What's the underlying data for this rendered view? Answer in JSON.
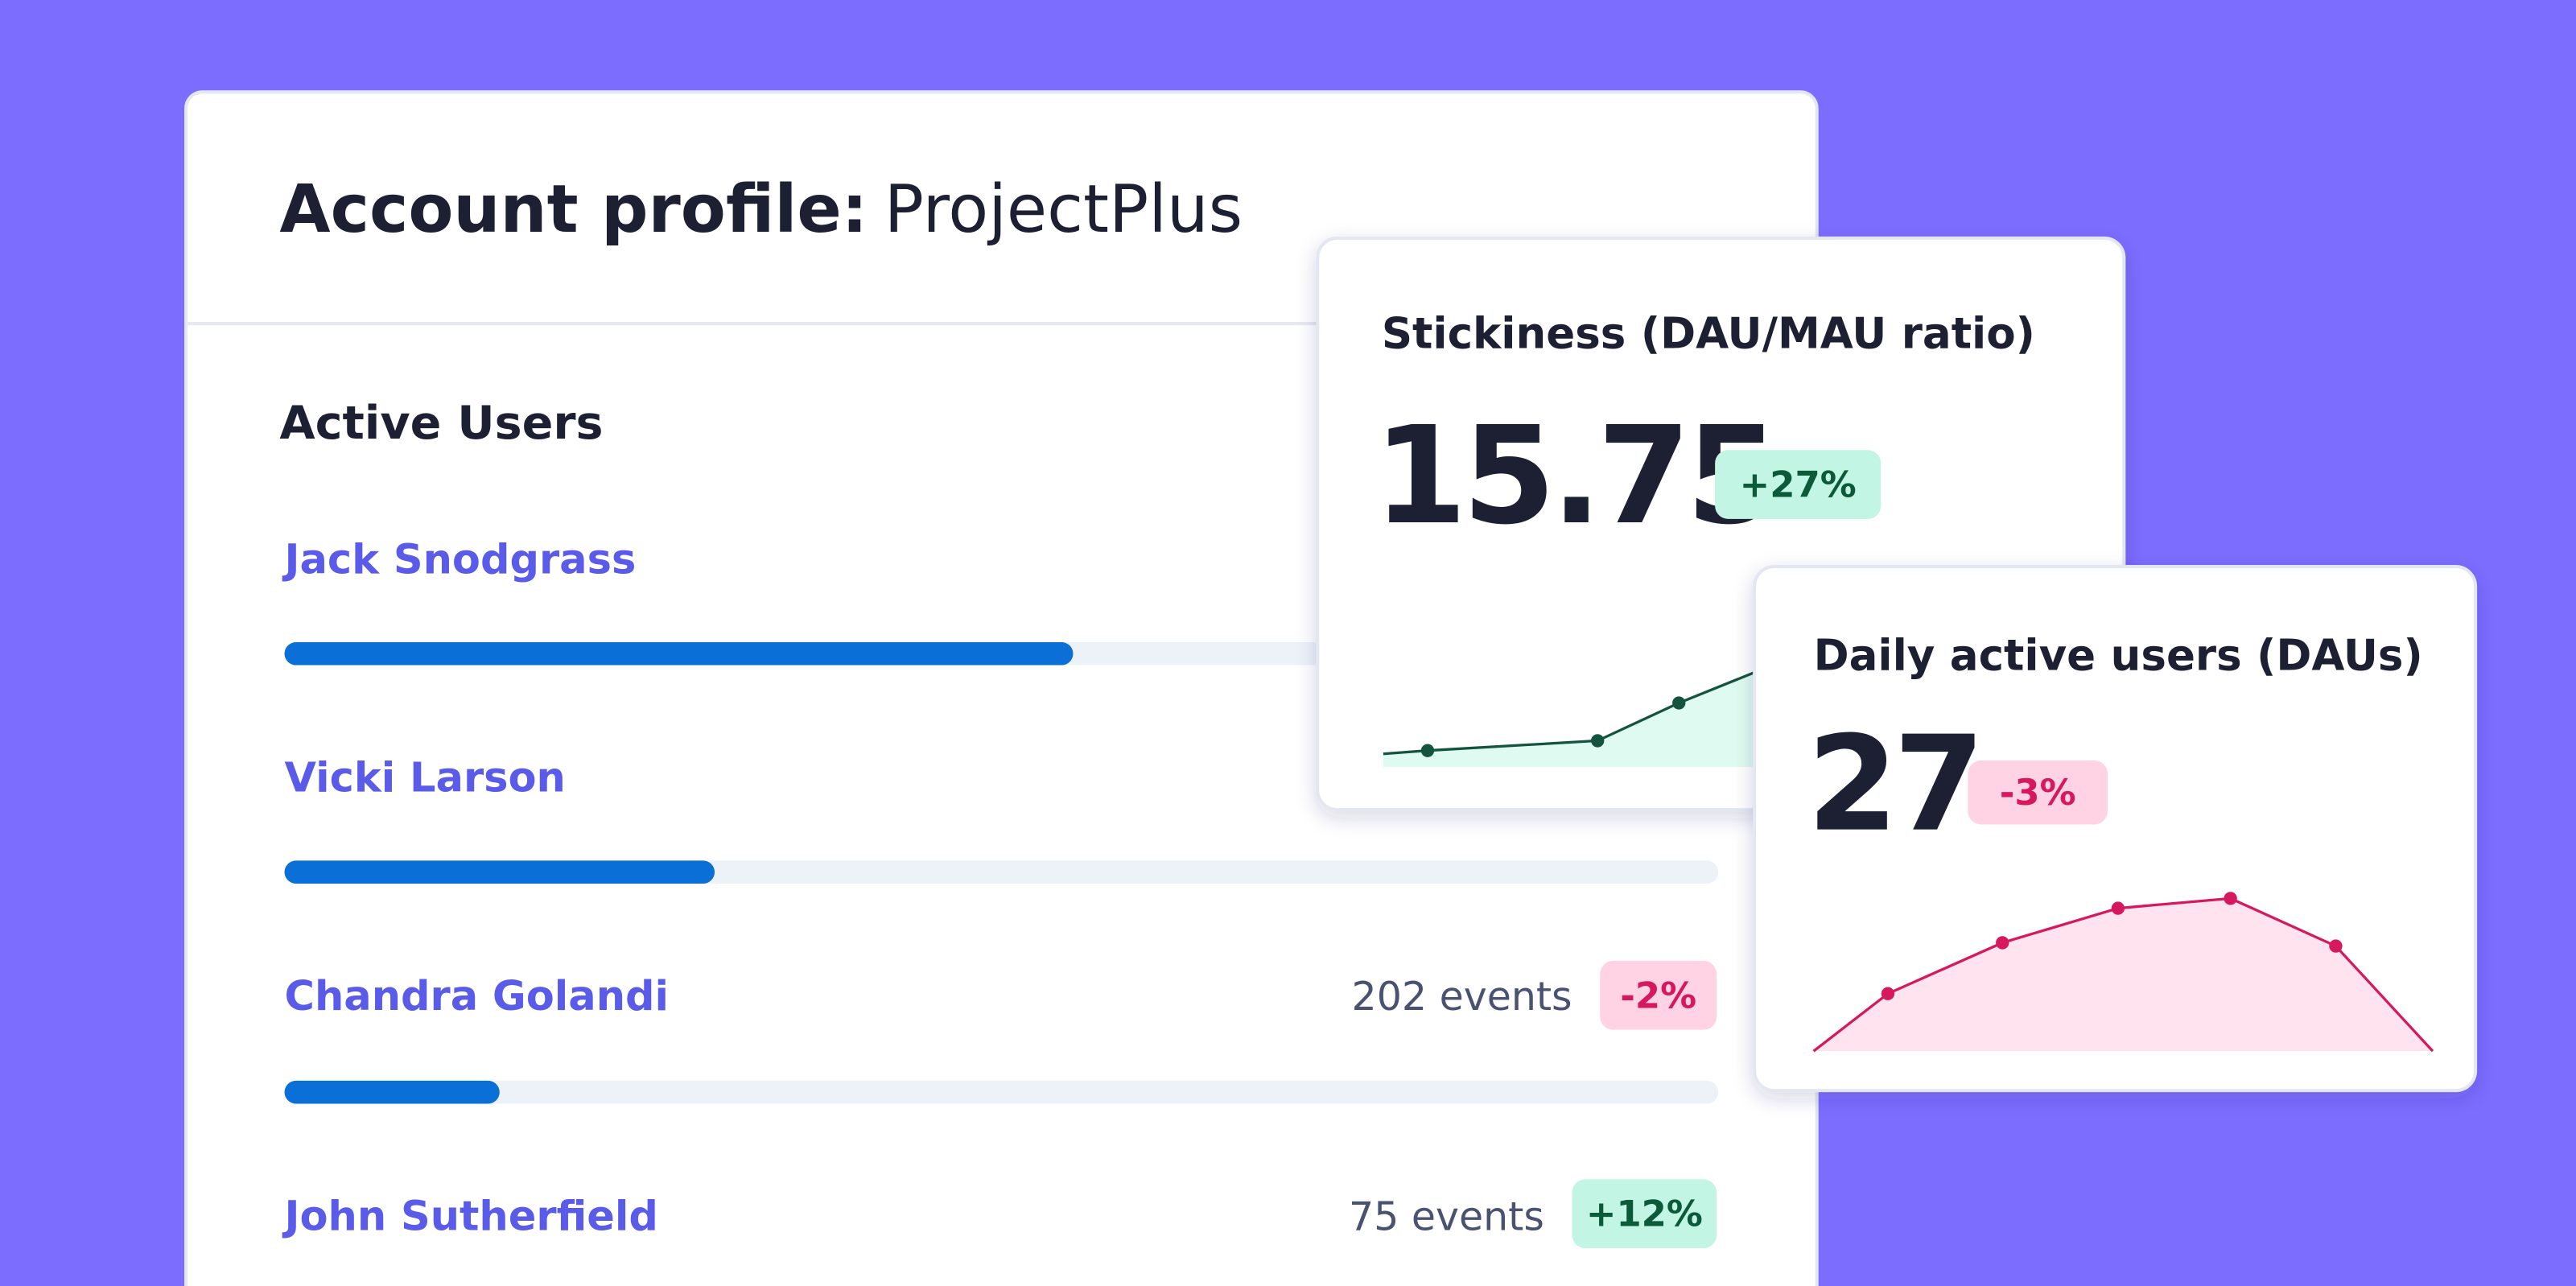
{
  "header": {
    "title_bold": "Account profile:",
    "title_name": "ProjectPlus"
  },
  "active_users": {
    "title": "Active Users",
    "users": [
      {
        "name": "Jack Snodgrass",
        "progress": 0.55
      },
      {
        "name": "Vicki Larson",
        "progress": 0.3
      },
      {
        "name": "Chandra Golandi",
        "progress": 0.15,
        "events": "202 events",
        "change": "-2%"
      },
      {
        "name": "John Sutherfield",
        "events": "75 events",
        "change": "+12%"
      }
    ]
  },
  "stickiness": {
    "title": "Stickiness (DAU/MAU ratio)",
    "value": "15.75",
    "change": "+27%",
    "sparkline": {
      "x": [
        0,
        0.6,
        2.9,
        4,
        5.1
      ],
      "y": [
        8,
        10,
        16,
        39,
        59
      ],
      "xlim": [
        0,
        10
      ],
      "ylim": [
        0,
        100
      ]
    }
  },
  "dau": {
    "title": "Daily active users (DAUs)",
    "value": "27",
    "change": "-3%",
    "sparkline": {
      "x": [
        0,
        0.72,
        1.83,
        2.95,
        4.04,
        5.06,
        6
      ],
      "y": [
        0,
        35,
        66,
        87,
        93,
        64,
        0
      ],
      "xlim": [
        0,
        6
      ],
      "ylim": [
        0,
        100
      ]
    }
  }
}
